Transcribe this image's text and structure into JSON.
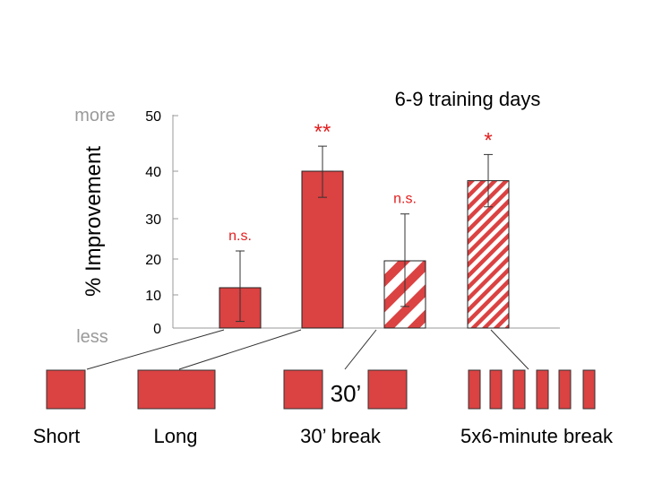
{
  "colors": {
    "bar_red": "#db4242",
    "star_red": "#e31e1e",
    "axis_gray": "#9a9a9a",
    "stripe_white": "#ffffff",
    "text_black": "#000000"
  },
  "chart_data": {
    "type": "bar",
    "title": "6-9 training days",
    "ylabel": "% Improvement",
    "ylim": [
      0,
      50
    ],
    "yticks": [
      0,
      10,
      20,
      30,
      40,
      50
    ],
    "scale_top_label": "more",
    "scale_bottom_label": "less",
    "grid": false,
    "bars": [
      {
        "value": 12,
        "err_low": 2,
        "err_high": 22,
        "fill": "solid",
        "sig": "n.s."
      },
      {
        "value": 40,
        "err_low": 34.5,
        "err_high": 44.5,
        "fill": "solid",
        "sig": "**"
      },
      {
        "value": 19.5,
        "err_low": 6.5,
        "err_high": 31,
        "fill": "wide-stripes",
        "sig": "n.s."
      },
      {
        "value": 38,
        "err_low": 32.5,
        "err_high": 43,
        "fill": "narrow-stripes",
        "sig": "*"
      }
    ]
  },
  "schedule": {
    "labels": [
      "Short",
      "Long",
      "30’ break",
      "5x6-minute break"
    ],
    "break_marker": "30’"
  }
}
